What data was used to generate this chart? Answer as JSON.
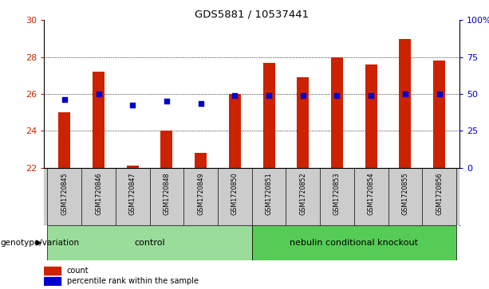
{
  "title": "GDS5881 / 10537441",
  "samples": [
    "GSM1720845",
    "GSM1720846",
    "GSM1720847",
    "GSM1720848",
    "GSM1720849",
    "GSM1720850",
    "GSM1720851",
    "GSM1720852",
    "GSM1720853",
    "GSM1720854",
    "GSM1720855",
    "GSM1720856"
  ],
  "bar_heights": [
    25.0,
    27.2,
    22.1,
    24.0,
    22.8,
    26.0,
    27.7,
    26.9,
    28.0,
    27.6,
    29.0,
    27.8
  ],
  "percentile_values": [
    25.7,
    26.0,
    25.4,
    25.6,
    25.5,
    25.9,
    25.9,
    25.9,
    25.9,
    25.9,
    26.0,
    26.0
  ],
  "bar_bottom": 22,
  "ylim_left": [
    22,
    30
  ],
  "ylim_right": [
    0,
    100
  ],
  "yticks_left": [
    22,
    24,
    26,
    28,
    30
  ],
  "yticks_right": [
    0,
    25,
    50,
    75,
    100
  ],
  "ytick_labels_right": [
    "0",
    "25",
    "50",
    "75",
    "100%"
  ],
  "bar_color": "#cc2200",
  "percentile_color": "#0000cc",
  "control_samples": 6,
  "control_label": "control",
  "ko_label": "nebulin conditional knockout",
  "control_bg": "#99dd99",
  "ko_bg": "#55cc55",
  "sample_bg": "#cccccc",
  "legend_count_label": "count",
  "legend_pct_label": "percentile rank within the sample",
  "genotype_label": "genotype/variation",
  "left_tick_color": "#cc2200",
  "right_tick_color": "#0000cc",
  "bar_width": 0.35
}
